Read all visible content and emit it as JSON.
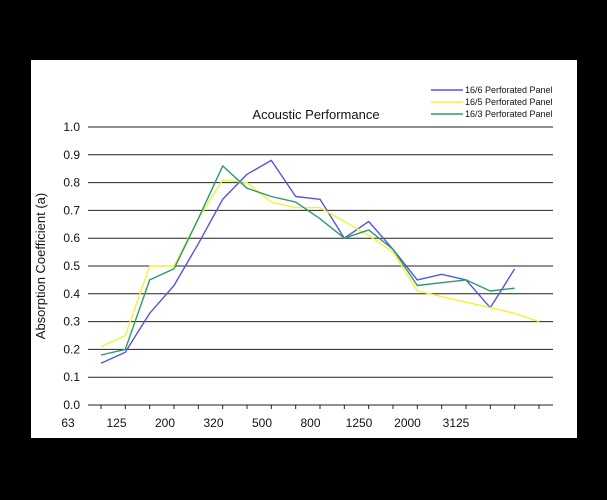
{
  "chart_data": {
    "type": "line",
    "title": "Acoustic Performance",
    "xlabel": "",
    "ylabel": "Absorption Coefficient (a)",
    "ylim": [
      0.0,
      1.0
    ],
    "yticks": [
      "0.0",
      "0.1",
      "0.2",
      "0.3",
      "0.4",
      "0.5",
      "0.6",
      "0.7",
      "0.8",
      "0.9",
      "1.0"
    ],
    "xtick_labels": [
      "63",
      "125",
      "200",
      "320",
      "500",
      "800",
      "1250",
      "2000",
      "3125"
    ],
    "grid": "horizontal",
    "legend_position": "top-right",
    "x": [
      "80",
      "100",
      "125",
      "160",
      "200",
      "250",
      "315",
      "400",
      "500",
      "630",
      "800",
      "1000",
      "1250",
      "1600",
      "2000",
      "2500",
      "3150",
      "4000",
      "5000"
    ],
    "series": [
      {
        "name": "16/6  Perforated Panel",
        "color": "#5555dd",
        "values": [
          0.15,
          0.19,
          0.33,
          0.43,
          0.58,
          0.74,
          0.83,
          0.88,
          0.75,
          0.74,
          0.6,
          0.66,
          0.56,
          0.45,
          0.47,
          0.45,
          0.35,
          0.49,
          null
        ]
      },
      {
        "name": "16/5  Perforated Panel",
        "color": "#f2f23c",
        "values": [
          0.21,
          0.25,
          0.5,
          0.5,
          0.67,
          0.81,
          0.8,
          0.73,
          0.71,
          0.71,
          0.66,
          0.61,
          0.55,
          0.41,
          0.39,
          0.37,
          0.35,
          0.33,
          0.3
        ]
      },
      {
        "name": "16/3  Perforated Panel",
        "color": "#2e9a68",
        "values": [
          0.18,
          0.2,
          0.45,
          0.49,
          0.67,
          0.86,
          0.78,
          0.75,
          0.73,
          0.67,
          0.6,
          0.63,
          0.56,
          0.43,
          0.44,
          0.45,
          0.41,
          0.42,
          null
        ]
      }
    ]
  }
}
